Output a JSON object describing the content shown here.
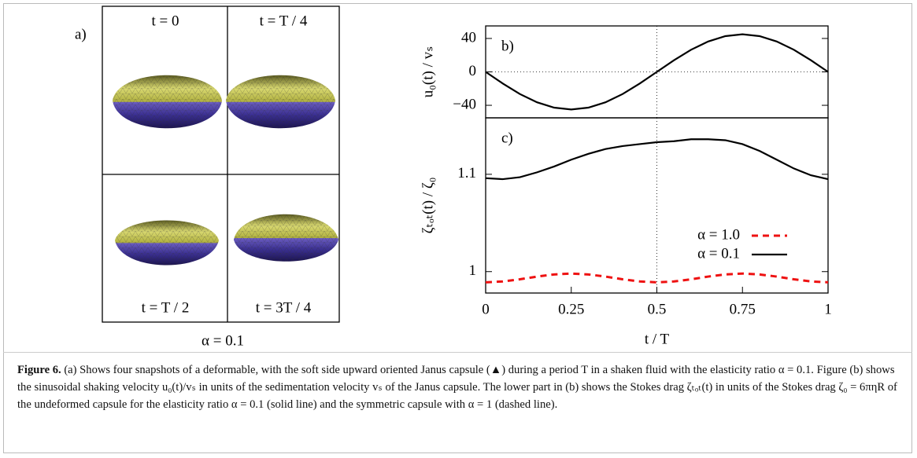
{
  "panel_a": {
    "label": "a)",
    "cells": [
      "t = 0",
      "t = T / 4",
      "t = T / 2",
      "t = 3T / 4"
    ],
    "footer": "α = 0.1"
  },
  "chart_data": [
    {
      "type": "line",
      "panel_label": "b)",
      "ylabel": "u₀(t) / vₛ",
      "x": [
        0,
        0.05,
        0.1,
        0.15,
        0.2,
        0.25,
        0.3,
        0.35,
        0.4,
        0.45,
        0.5,
        0.55,
        0.6,
        0.65,
        0.7,
        0.75,
        0.8,
        0.85,
        0.9,
        0.95,
        1
      ],
      "values": [
        0,
        -13.9,
        -26.5,
        -36.4,
        -42.8,
        -45,
        -42.8,
        -36.4,
        -26.5,
        -13.9,
        0,
        13.9,
        26.5,
        36.4,
        42.8,
        45,
        42.8,
        36.4,
        26.5,
        13.9,
        0
      ],
      "color": "#000000",
      "xlim": [
        0,
        1
      ],
      "ylim": [
        -55,
        55
      ],
      "yticks": [
        {
          "value": -40,
          "label": "−40"
        },
        0,
        40
      ],
      "vline": 0.5,
      "hline": 0
    },
    {
      "type": "line",
      "panel_label": "c)",
      "ylabel": "ζₜₒₜ(t) / ζ₀",
      "xlabel": "t / T",
      "x": [
        0,
        0.05,
        0.1,
        0.15,
        0.2,
        0.25,
        0.3,
        0.35,
        0.4,
        0.45,
        0.5,
        0.55,
        0.6,
        0.65,
        0.7,
        0.75,
        0.8,
        0.85,
        0.9,
        0.95,
        1
      ],
      "series": [
        {
          "name": "α = 1.0",
          "color": "#ee1111",
          "dashed": true,
          "values": [
            0.989,
            0.9899,
            0.9921,
            0.9949,
            0.9971,
            0.998,
            0.9971,
            0.9949,
            0.9921,
            0.9899,
            0.989,
            0.9899,
            0.9921,
            0.9949,
            0.9971,
            0.998,
            0.9971,
            0.9949,
            0.9921,
            0.9899,
            0.989
          ]
        },
        {
          "name": "α = 0.1",
          "color": "#000000",
          "dashed": false,
          "values": [
            1.096,
            1.095,
            1.097,
            1.102,
            1.108,
            1.115,
            1.121,
            1.126,
            1.129,
            1.131,
            1.133,
            1.134,
            1.136,
            1.136,
            1.135,
            1.131,
            1.124,
            1.115,
            1.106,
            1.099,
            1.095
          ]
        }
      ],
      "xlim": [
        0,
        1
      ],
      "ylim": [
        0.978,
        1.158
      ],
      "xticks": [
        0,
        0.25,
        0.5,
        0.75,
        1
      ],
      "yticks": [
        1,
        1.1
      ],
      "vline": 0.5
    }
  ],
  "caption": {
    "label": "Figure 6.",
    "text": " (a) Shows four snapshots of a deformable, with the soft side upward oriented Janus capsule (▲) during a period T in a shaken fluid with the elasticity ratio α = 0.1. Figure (b) shows the sinusoidal shaking velocity u₀(t)/vₛ in units of the sedimentation velocity vₛ of the Janus capsule. The lower part in (b) shows the Stokes drag ζₜₒₜ(t) in units of the Stokes drag ζ₀ = 6πηR of the undeformed capsule for the elasticity ratio α = 0.1 (solid line) and the symmetric capsule with α = 1 (dashed line)."
  }
}
